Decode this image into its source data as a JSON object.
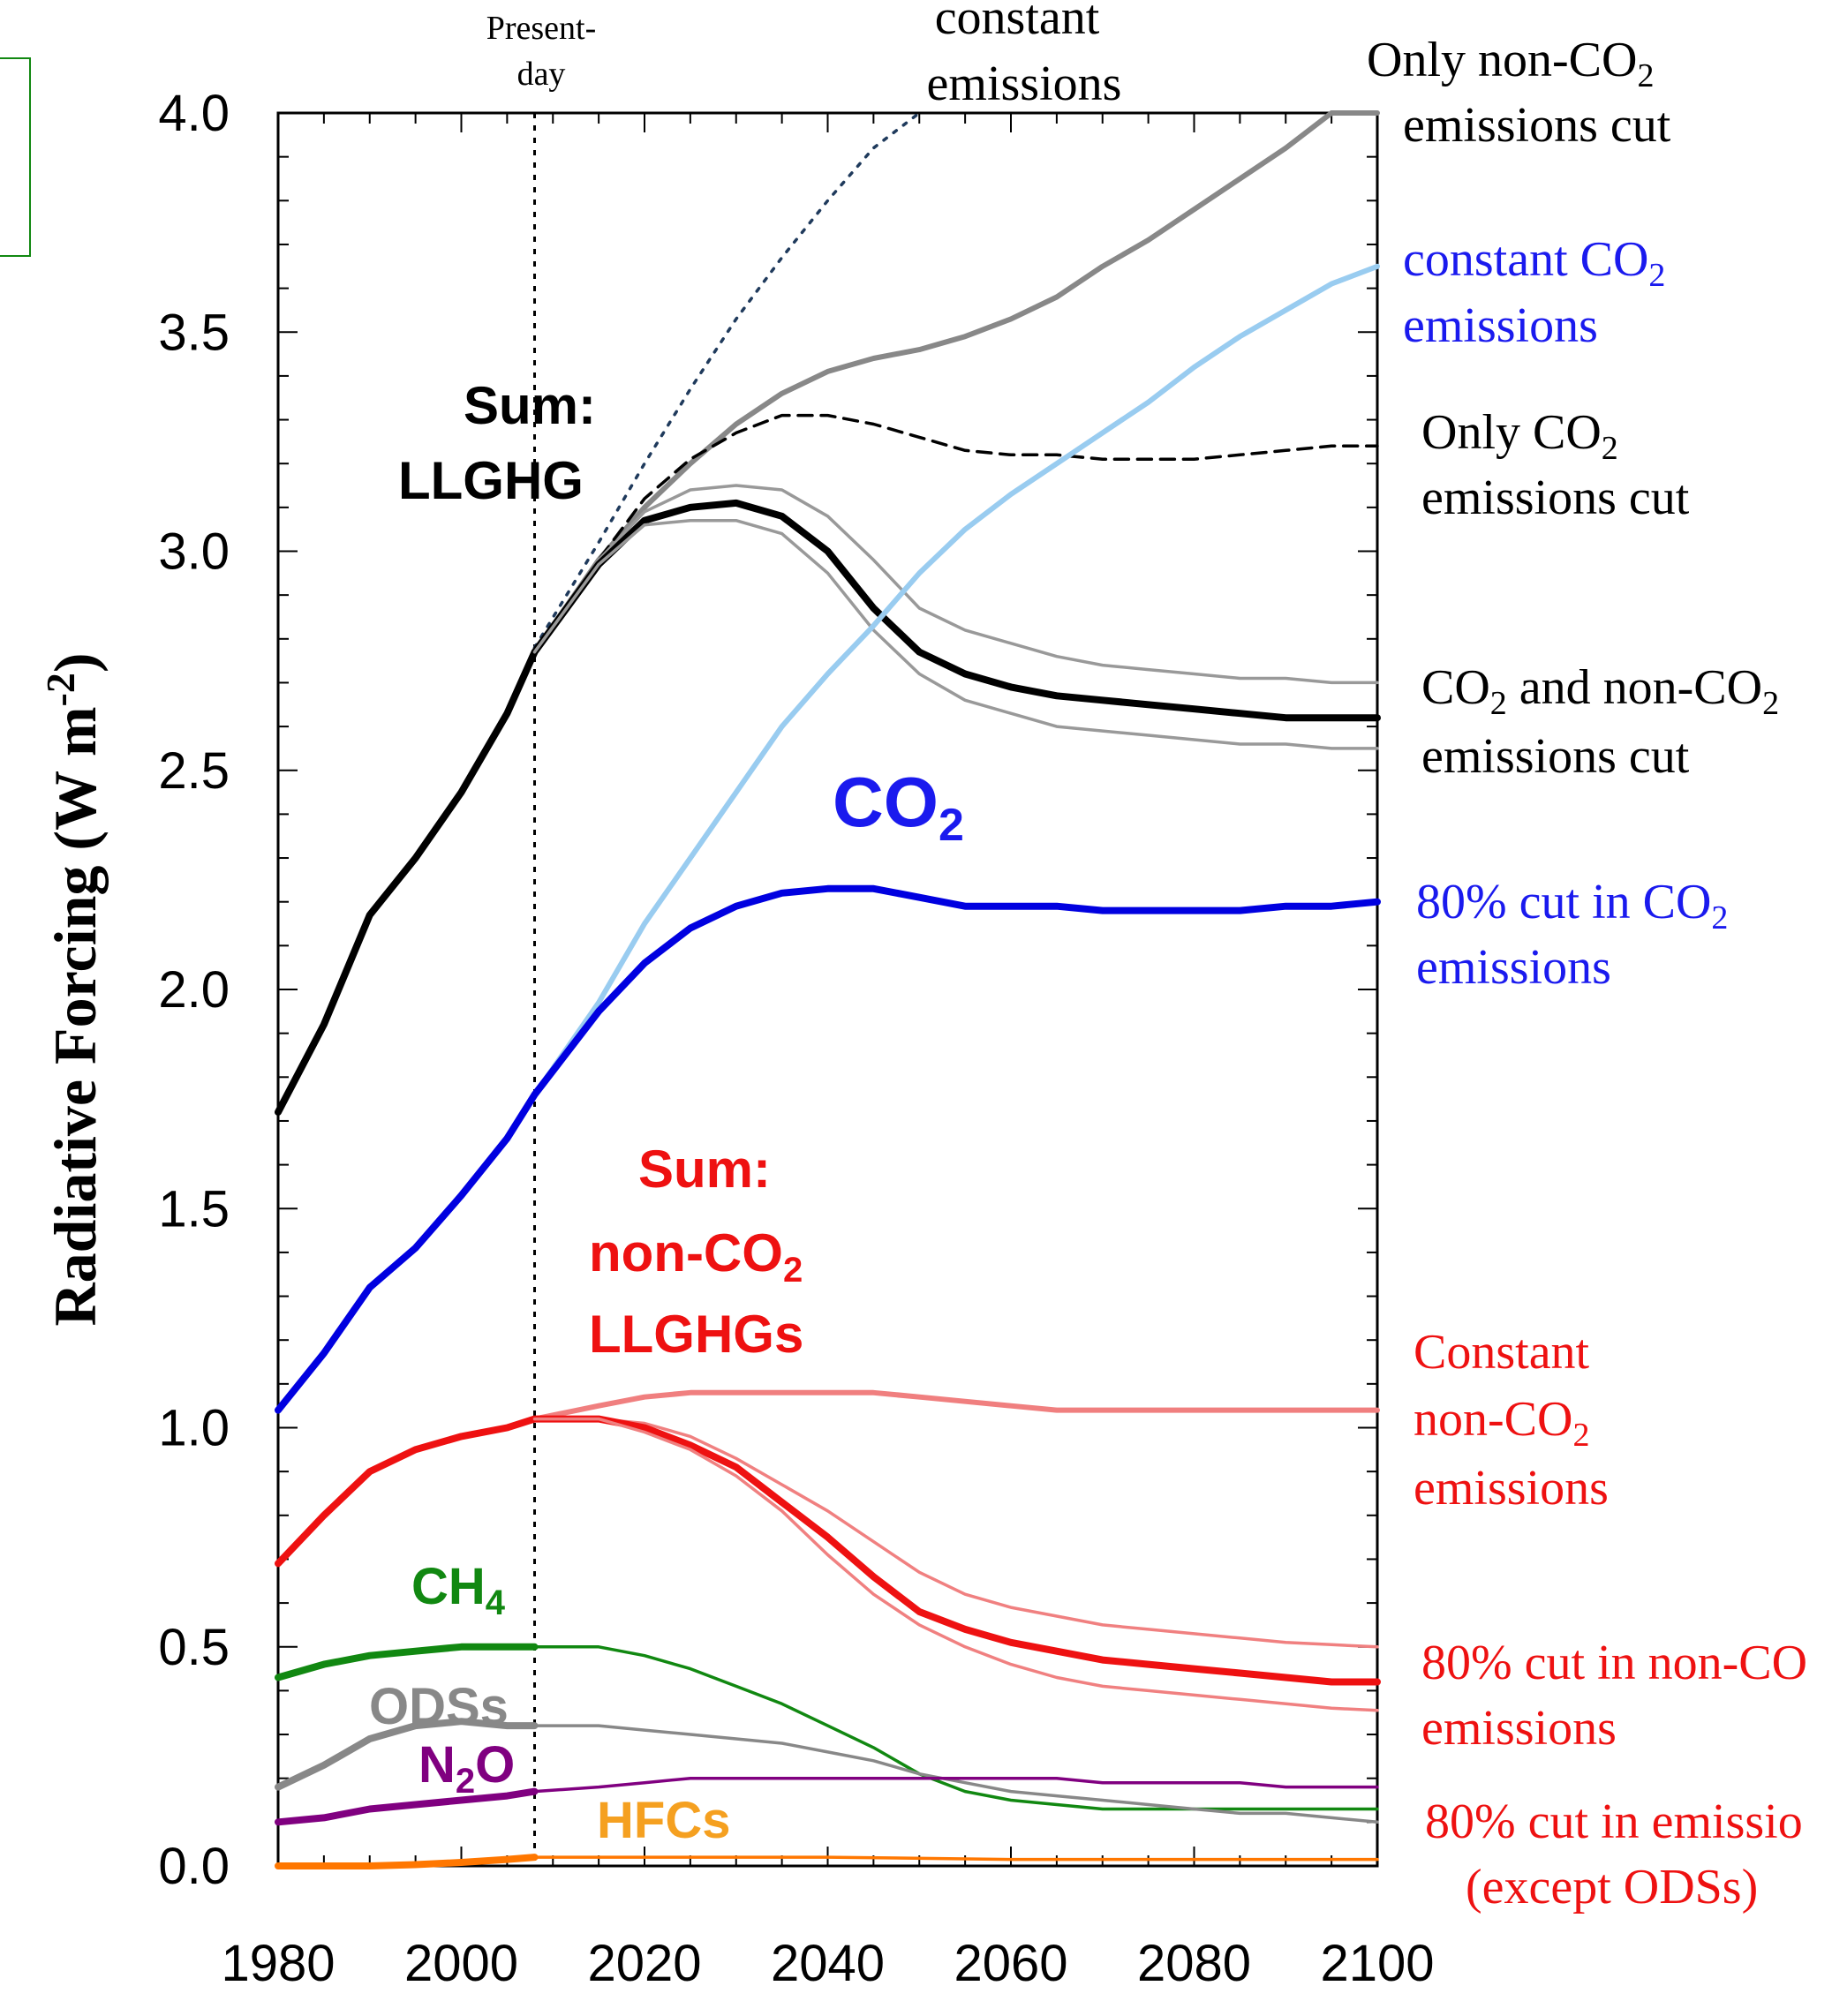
{
  "chart_data": {
    "type": "line",
    "xlabel": "",
    "ylabel": "Radiative Forcing (W m⁻²)",
    "xlim": [
      1980,
      2100
    ],
    "ylim": [
      0.0,
      4.0
    ],
    "x_ticks": [
      "1980",
      "2000",
      "2020",
      "2040",
      "2060",
      "2080",
      "2100"
    ],
    "y_ticks": [
      "0.0",
      "0.5",
      "1.0",
      "1.5",
      "2.0",
      "2.5",
      "3.0",
      "3.5",
      "4.0"
    ],
    "grid": false,
    "present_day_x": 2008,
    "series": [
      {
        "key": "sum_const",
        "color": "#1f3a5c",
        "dash": "dotted",
        "x": [
          2008,
          2015,
          2020,
          2025,
          2030,
          2035,
          2040,
          2045,
          2050
        ],
        "y": [
          2.78,
          3.02,
          3.2,
          3.37,
          3.53,
          3.67,
          3.8,
          3.92,
          4.02
        ]
      },
      {
        "key": "sum_nonco2cut",
        "color": "#888888",
        "x": [
          2008,
          2015,
          2020,
          2025,
          2030,
          2035,
          2040,
          2045,
          2050,
          2055,
          2060,
          2065,
          2070,
          2075,
          2080,
          2085,
          2090,
          2095,
          2100
        ],
        "y": [
          2.77,
          2.98,
          3.1,
          3.2,
          3.29,
          3.36,
          3.41,
          3.44,
          3.46,
          3.49,
          3.53,
          3.58,
          3.65,
          3.71,
          3.78,
          3.85,
          3.92,
          4.0,
          4.08
        ]
      },
      {
        "key": "sum_co2cut",
        "color": "#000000",
        "dash": "dashed",
        "x": [
          2008,
          2015,
          2020,
          2025,
          2030,
          2035,
          2040,
          2045,
          2050,
          2055,
          2060,
          2065,
          2070,
          2075,
          2080,
          2085,
          2090,
          2095,
          2100
        ],
        "y": [
          2.77,
          2.98,
          3.12,
          3.21,
          3.27,
          3.31,
          3.31,
          3.29,
          3.26,
          3.23,
          3.22,
          3.22,
          3.21,
          3.21,
          3.21,
          3.22,
          3.23,
          3.24,
          3.24
        ]
      },
      {
        "key": "sum_upper",
        "color": "#999999",
        "thin": true,
        "x": [
          2008,
          2015,
          2020,
          2025,
          2030,
          2035,
          2040,
          2045,
          2050,
          2055,
          2060,
          2065,
          2070,
          2075,
          2080,
          2085,
          2090,
          2095,
          2100
        ],
        "y": [
          2.77,
          2.98,
          3.09,
          3.14,
          3.15,
          3.14,
          3.08,
          2.98,
          2.87,
          2.82,
          2.79,
          2.76,
          2.74,
          2.73,
          2.72,
          2.71,
          2.71,
          2.7,
          2.7
        ]
      },
      {
        "key": "sum_both",
        "color": "#000000",
        "thick": true,
        "x": [
          1980,
          1985,
          1990,
          1995,
          2000,
          2005,
          2008,
          2015,
          2020,
          2025,
          2030,
          2035,
          2040,
          2045,
          2050,
          2055,
          2060,
          2065,
          2070,
          2075,
          2080,
          2085,
          2090,
          2095,
          2100
        ],
        "y": [
          1.72,
          1.92,
          2.17,
          2.3,
          2.45,
          2.63,
          2.77,
          2.97,
          3.07,
          3.1,
          3.11,
          3.08,
          3.0,
          2.87,
          2.77,
          2.72,
          2.69,
          2.67,
          2.66,
          2.65,
          2.64,
          2.63,
          2.62,
          2.62,
          2.62
        ]
      },
      {
        "key": "sum_lower",
        "color": "#999999",
        "thin": true,
        "x": [
          2008,
          2015,
          2020,
          2025,
          2030,
          2035,
          2040,
          2045,
          2050,
          2055,
          2060,
          2065,
          2070,
          2075,
          2080,
          2085,
          2090,
          2095,
          2100
        ],
        "y": [
          2.77,
          2.97,
          3.06,
          3.07,
          3.07,
          3.04,
          2.95,
          2.82,
          2.72,
          2.66,
          2.63,
          2.6,
          2.59,
          2.58,
          2.57,
          2.56,
          2.56,
          2.55,
          2.55
        ]
      },
      {
        "key": "co2_const",
        "color": "#99ccf0",
        "x": [
          2008,
          2015,
          2020,
          2025,
          2030,
          2035,
          2040,
          2045,
          2050,
          2055,
          2060,
          2065,
          2070,
          2075,
          2080,
          2085,
          2090,
          2095,
          2100
        ],
        "y": [
          1.76,
          1.97,
          2.15,
          2.3,
          2.45,
          2.6,
          2.72,
          2.83,
          2.95,
          3.05,
          3.13,
          3.2,
          3.27,
          3.34,
          3.42,
          3.49,
          3.55,
          3.61,
          3.65
        ]
      },
      {
        "key": "co2_cut",
        "color": "#0000e0",
        "thick": true,
        "x": [
          1980,
          1985,
          1990,
          1995,
          2000,
          2005,
          2008,
          2015,
          2020,
          2025,
          2030,
          2035,
          2040,
          2045,
          2050,
          2055,
          2060,
          2065,
          2070,
          2075,
          2080,
          2085,
          2090,
          2095,
          2100
        ],
        "y": [
          1.04,
          1.17,
          1.32,
          1.41,
          1.53,
          1.66,
          1.76,
          1.95,
          2.06,
          2.14,
          2.19,
          2.22,
          2.23,
          2.23,
          2.21,
          2.19,
          2.19,
          2.19,
          2.18,
          2.18,
          2.18,
          2.18,
          2.19,
          2.19,
          2.2
        ]
      },
      {
        "key": "nonco2_const",
        "color": "#f07f7f",
        "x": [
          2008,
          2015,
          2020,
          2025,
          2030,
          2035,
          2040,
          2045,
          2050,
          2055,
          2060,
          2065,
          2070,
          2075,
          2080,
          2085,
          2090,
          2095,
          2100
        ],
        "y": [
          1.02,
          1.05,
          1.07,
          1.08,
          1.08,
          1.08,
          1.08,
          1.08,
          1.07,
          1.06,
          1.05,
          1.04,
          1.04,
          1.04,
          1.04,
          1.04,
          1.04,
          1.04,
          1.04
        ]
      },
      {
        "key": "nonco2_upper",
        "color": "#f08080",
        "thin": true,
        "x": [
          2008,
          2015,
          2020,
          2025,
          2030,
          2035,
          2040,
          2045,
          2050,
          2055,
          2060,
          2065,
          2070,
          2075,
          2080,
          2085,
          2090,
          2095,
          2100
        ],
        "y": [
          1.02,
          1.02,
          1.01,
          0.98,
          0.93,
          0.87,
          0.81,
          0.74,
          0.67,
          0.62,
          0.59,
          0.57,
          0.55,
          0.54,
          0.53,
          0.52,
          0.51,
          0.505,
          0.5
        ]
      },
      {
        "key": "nonco2_cut",
        "color": "#ee1111",
        "thick": true,
        "x": [
          1980,
          1985,
          1990,
          1995,
          2000,
          2005,
          2008,
          2015,
          2020,
          2025,
          2030,
          2035,
          2040,
          2045,
          2050,
          2055,
          2060,
          2065,
          2070,
          2075,
          2080,
          2085,
          2090,
          2095,
          2100
        ],
        "y": [
          0.69,
          0.8,
          0.9,
          0.95,
          0.98,
          1.0,
          1.02,
          1.02,
          1.0,
          0.96,
          0.91,
          0.83,
          0.75,
          0.66,
          0.58,
          0.54,
          0.51,
          0.49,
          0.47,
          0.46,
          0.45,
          0.44,
          0.43,
          0.42,
          0.42
        ]
      },
      {
        "key": "nonco2_lower",
        "color": "#f08080",
        "thin": true,
        "x": [
          2008,
          2015,
          2020,
          2025,
          2030,
          2035,
          2040,
          2045,
          2050,
          2055,
          2060,
          2065,
          2070,
          2075,
          2080,
          2085,
          2090,
          2095,
          2100
        ],
        "y": [
          1.02,
          1.02,
          0.99,
          0.95,
          0.89,
          0.81,
          0.71,
          0.62,
          0.55,
          0.5,
          0.46,
          0.43,
          0.41,
          0.4,
          0.39,
          0.38,
          0.37,
          0.36,
          0.355
        ]
      },
      {
        "key": "ch4_hist",
        "color": "#118811",
        "thick": true,
        "x": [
          1980,
          1985,
          1990,
          1995,
          2000,
          2005,
          2008
        ],
        "y": [
          0.43,
          0.46,
          0.48,
          0.49,
          0.5,
          0.5,
          0.5
        ]
      },
      {
        "key": "ch4_cut",
        "color": "#118811",
        "thin": true,
        "x": [
          2008,
          2015,
          2020,
          2025,
          2030,
          2035,
          2040,
          2045,
          2050,
          2055,
          2060,
          2065,
          2070,
          2075,
          2080,
          2085,
          2090,
          2095,
          2100
        ],
        "y": [
          0.5,
          0.5,
          0.48,
          0.45,
          0.41,
          0.37,
          0.32,
          0.27,
          0.21,
          0.17,
          0.15,
          0.14,
          0.13,
          0.13,
          0.13,
          0.13,
          0.13,
          0.13,
          0.13
        ]
      },
      {
        "key": "ods_hist",
        "color": "#888888",
        "thick": true,
        "x": [
          1980,
          1985,
          1990,
          1995,
          2000,
          2005,
          2008
        ],
        "y": [
          0.18,
          0.23,
          0.29,
          0.32,
          0.33,
          0.32,
          0.32
        ]
      },
      {
        "key": "ods_proj",
        "color": "#888888",
        "thin": true,
        "x": [
          2008,
          2015,
          2020,
          2025,
          2030,
          2035,
          2040,
          2045,
          2050,
          2055,
          2060,
          2065,
          2070,
          2075,
          2080,
          2085,
          2090,
          2095,
          2100
        ],
        "y": [
          0.32,
          0.32,
          0.31,
          0.3,
          0.29,
          0.28,
          0.26,
          0.24,
          0.21,
          0.19,
          0.17,
          0.16,
          0.15,
          0.14,
          0.13,
          0.12,
          0.12,
          0.11,
          0.1
        ]
      },
      {
        "key": "n2o_hist",
        "color": "#800080",
        "thick": true,
        "x": [
          1980,
          1985,
          1990,
          1995,
          2000,
          2005,
          2008
        ],
        "y": [
          0.1,
          0.11,
          0.13,
          0.14,
          0.15,
          0.16,
          0.17
        ]
      },
      {
        "key": "n2o_cut",
        "color": "#800080",
        "thin": true,
        "x": [
          2008,
          2015,
          2020,
          2025,
          2030,
          2035,
          2040,
          2045,
          2050,
          2055,
          2060,
          2065,
          2070,
          2075,
          2080,
          2085,
          2090,
          2095,
          2100
        ],
        "y": [
          0.17,
          0.18,
          0.19,
          0.2,
          0.2,
          0.2,
          0.2,
          0.2,
          0.2,
          0.2,
          0.2,
          0.2,
          0.19,
          0.19,
          0.19,
          0.19,
          0.18,
          0.18,
          0.18
        ]
      },
      {
        "key": "hfc_hist",
        "color": "#ff7700",
        "thick": true,
        "x": [
          1980,
          1990,
          1995,
          2000,
          2005,
          2008
        ],
        "y": [
          0.0,
          0.0,
          0.003,
          0.008,
          0.015,
          0.02
        ]
      },
      {
        "key": "hfc_cut",
        "color": "#ff7700",
        "thin": true,
        "x": [
          2008,
          2020,
          2040,
          2060,
          2080,
          2100
        ],
        "y": [
          0.02,
          0.02,
          0.02,
          0.015,
          0.015,
          0.015
        ]
      }
    ],
    "annotations": {
      "present_day_line1": "Present-",
      "present_day_line2": "day",
      "constant_line1": "constant",
      "constant_line2": "emissions",
      "only_nonco2_cut_l1a": "Only non-CO",
      "only_nonco2_cut_l1sub": "2",
      "only_nonco2_cut_l2": "emissions cut",
      "constant_co2_l1a": "constant CO",
      "constant_co2_l1sub": "2",
      "constant_co2_l2": "emissions",
      "only_co2_cut_l1a": "Only CO",
      "only_co2_cut_l1sub": "2",
      "only_co2_cut_l2": "emissions cut",
      "both_cut_l1a": "CO",
      "both_cut_l1sub": "2",
      "both_cut_l1b": " and non-CO",
      "both_cut_l1sub2": "2",
      "both_cut_l2": "emissions cut",
      "co2_80_l1a": "80% cut in CO",
      "co2_80_l1sub": "2",
      "co2_80_l2": "emissions",
      "nonco2_const_l1": "Constant",
      "nonco2_const_l2a": "non-CO",
      "nonco2_const_l2sub": "2",
      "nonco2_const_l3": "emissions",
      "nonco2_80_l1": "80% cut in non-CO",
      "nonco2_80_l2": "emissions",
      "emis_80_l1": "80% cut in emissio",
      "emis_80_l2": "(except ODSs)",
      "sum_llghg_l1": "Sum:",
      "sum_llghg_l2": "LLGHG",
      "co2_label_a": "CO",
      "co2_label_sub": "2",
      "sum_nonco2_l1": "Sum:",
      "sum_nonco2_l2a": "non-CO",
      "sum_nonco2_l2sub": "2",
      "sum_nonco2_l3": "LLGHGs",
      "ch4_label_a": "CH",
      "ch4_label_sub": "4",
      "ods_label": "ODSs",
      "n2o_label_a": "N",
      "n2o_label_sub": "2",
      "n2o_label_b": "O",
      "hfc_label": "HFCs"
    },
    "ylabel_main": "Radiative Forcing (W m",
    "ylabel_sup": "-2",
    "ylabel_end": ")"
  }
}
